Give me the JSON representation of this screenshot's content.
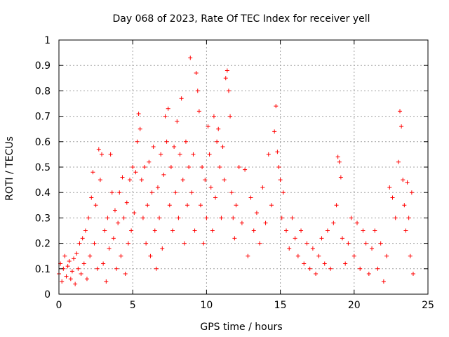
{
  "chart_data": {
    "type": "scatter",
    "title": "Day 068 of 2023, Rate Of TEC Index for receiver yell",
    "xlabel": "GPS time / hours",
    "ylabel": "ROTI / TECUs",
    "xlim": [
      0,
      25
    ],
    "ylim": [
      0,
      1
    ],
    "xticks": [
      0,
      5,
      10,
      15,
      20,
      25
    ],
    "yticks": [
      0,
      0.1,
      0.2,
      0.3,
      0.4,
      0.5,
      0.6,
      0.7,
      0.8,
      0.9,
      1
    ],
    "xtick_labels": [
      "0",
      "5",
      "10",
      "15",
      "20",
      "25"
    ],
    "ytick_labels": [
      "0",
      "0.1",
      "0.2",
      "0.3",
      "0.4",
      "0.5",
      "0.6",
      "0.7",
      "0.8",
      "0.9",
      "1"
    ],
    "grid": true,
    "marker": "plus",
    "color": "#ff0000",
    "series": [
      {
        "values": [
          [
            0.0,
            0.08
          ],
          [
            0.1,
            0.12
          ],
          [
            0.2,
            0.05
          ],
          [
            0.3,
            0.1
          ],
          [
            0.4,
            0.15
          ],
          [
            0.5,
            0.07
          ],
          [
            0.6,
            0.11
          ],
          [
            0.7,
            0.13
          ],
          [
            0.8,
            0.06
          ],
          [
            0.9,
            0.09
          ],
          [
            1.0,
            0.14
          ],
          [
            1.1,
            0.04
          ],
          [
            1.2,
            0.16
          ],
          [
            1.3,
            0.1
          ],
          [
            1.4,
            0.2
          ],
          [
            1.5,
            0.08
          ],
          [
            1.6,
            0.22
          ],
          [
            1.7,
            0.12
          ],
          [
            1.8,
            0.25
          ],
          [
            1.9,
            0.06
          ],
          [
            2.0,
            0.3
          ],
          [
            2.1,
            0.15
          ],
          [
            2.2,
            0.38
          ],
          [
            2.3,
            0.48
          ],
          [
            2.4,
            0.2
          ],
          [
            2.5,
            0.35
          ],
          [
            2.6,
            0.1
          ],
          [
            2.7,
            0.57
          ],
          [
            2.8,
            0.45
          ],
          [
            2.9,
            0.55
          ],
          [
            3.0,
            0.12
          ],
          [
            3.1,
            0.25
          ],
          [
            3.2,
            0.05
          ],
          [
            3.3,
            0.3
          ],
          [
            3.4,
            0.18
          ],
          [
            3.5,
            0.55
          ],
          [
            3.6,
            0.4
          ],
          [
            3.7,
            0.22
          ],
          [
            3.8,
            0.33
          ],
          [
            3.9,
            0.1
          ],
          [
            4.0,
            0.28
          ],
          [
            4.1,
            0.4
          ],
          [
            4.2,
            0.15
          ],
          [
            4.3,
            0.46
          ],
          [
            4.4,
            0.3
          ],
          [
            4.5,
            0.08
          ],
          [
            4.6,
            0.36
          ],
          [
            4.7,
            0.2
          ],
          [
            4.8,
            0.45
          ],
          [
            4.9,
            0.25
          ],
          [
            5.0,
            0.5
          ],
          [
            5.1,
            0.32
          ],
          [
            5.2,
            0.48
          ],
          [
            5.3,
            0.6
          ],
          [
            5.4,
            0.71
          ],
          [
            5.5,
            0.65
          ],
          [
            5.6,
            0.45
          ],
          [
            5.7,
            0.3
          ],
          [
            5.8,
            0.5
          ],
          [
            5.9,
            0.2
          ],
          [
            6.0,
            0.35
          ],
          [
            6.1,
            0.52
          ],
          [
            6.2,
            0.15
          ],
          [
            6.3,
            0.4
          ],
          [
            6.4,
            0.58
          ],
          [
            6.5,
            0.25
          ],
          [
            6.6,
            0.1
          ],
          [
            6.7,
            0.42
          ],
          [
            6.8,
            0.3
          ],
          [
            6.9,
            0.55
          ],
          [
            7.0,
            0.18
          ],
          [
            7.1,
            0.47
          ],
          [
            7.2,
            0.7
          ],
          [
            7.3,
            0.6
          ],
          [
            7.4,
            0.73
          ],
          [
            7.5,
            0.35
          ],
          [
            7.6,
            0.5
          ],
          [
            7.7,
            0.25
          ],
          [
            7.8,
            0.58
          ],
          [
            7.9,
            0.4
          ],
          [
            8.0,
            0.68
          ],
          [
            8.1,
            0.3
          ],
          [
            8.2,
            0.55
          ],
          [
            8.3,
            0.77
          ],
          [
            8.4,
            0.45
          ],
          [
            8.5,
            0.2
          ],
          [
            8.6,
            0.6
          ],
          [
            8.7,
            0.35
          ],
          [
            8.8,
            0.5
          ],
          [
            8.9,
            0.93
          ],
          [
            9.0,
            0.4
          ],
          [
            9.1,
            0.55
          ],
          [
            9.2,
            0.25
          ],
          [
            9.3,
            0.87
          ],
          [
            9.4,
            0.8
          ],
          [
            9.5,
            0.72
          ],
          [
            9.6,
            0.35
          ],
          [
            9.7,
            0.5
          ],
          [
            9.8,
            0.2
          ],
          [
            9.9,
            0.45
          ],
          [
            10.0,
            0.3
          ],
          [
            10.1,
            0.66
          ],
          [
            10.2,
            0.55
          ],
          [
            10.3,
            0.42
          ],
          [
            10.4,
            0.25
          ],
          [
            10.5,
            0.7
          ],
          [
            10.6,
            0.38
          ],
          [
            10.7,
            0.6
          ],
          [
            10.8,
            0.65
          ],
          [
            10.9,
            0.5
          ],
          [
            11.0,
            0.3
          ],
          [
            11.1,
            0.58
          ],
          [
            11.2,
            0.45
          ],
          [
            11.3,
            0.85
          ],
          [
            11.4,
            0.88
          ],
          [
            11.5,
            0.8
          ],
          [
            11.6,
            0.7
          ],
          [
            11.7,
            0.4
          ],
          [
            11.8,
            0.3
          ],
          [
            11.9,
            0.22
          ],
          [
            12.0,
            0.35
          ],
          [
            12.2,
            0.5
          ],
          [
            12.4,
            0.28
          ],
          [
            12.6,
            0.49
          ],
          [
            12.8,
            0.15
          ],
          [
            13.0,
            0.38
          ],
          [
            13.2,
            0.25
          ],
          [
            13.4,
            0.32
          ],
          [
            13.6,
            0.2
          ],
          [
            13.8,
            0.42
          ],
          [
            14.0,
            0.28
          ],
          [
            14.2,
            0.55
          ],
          [
            14.4,
            0.35
          ],
          [
            14.6,
            0.64
          ],
          [
            14.7,
            0.74
          ],
          [
            14.8,
            0.56
          ],
          [
            14.9,
            0.5
          ],
          [
            15.0,
            0.45
          ],
          [
            15.1,
            0.3
          ],
          [
            15.2,
            0.4
          ],
          [
            15.4,
            0.25
          ],
          [
            15.6,
            0.18
          ],
          [
            15.8,
            0.3
          ],
          [
            16.0,
            0.22
          ],
          [
            16.2,
            0.15
          ],
          [
            16.4,
            0.25
          ],
          [
            16.6,
            0.12
          ],
          [
            16.8,
            0.2
          ],
          [
            17.0,
            0.1
          ],
          [
            17.2,
            0.18
          ],
          [
            17.4,
            0.08
          ],
          [
            17.6,
            0.15
          ],
          [
            17.8,
            0.22
          ],
          [
            18.0,
            0.12
          ],
          [
            18.2,
            0.25
          ],
          [
            18.4,
            0.1
          ],
          [
            18.6,
            0.28
          ],
          [
            18.8,
            0.35
          ],
          [
            18.9,
            0.54
          ],
          [
            19.0,
            0.52
          ],
          [
            19.1,
            0.46
          ],
          [
            19.2,
            0.22
          ],
          [
            19.4,
            0.12
          ],
          [
            19.6,
            0.2
          ],
          [
            19.8,
            0.3
          ],
          [
            20.0,
            0.15
          ],
          [
            20.2,
            0.28
          ],
          [
            20.4,
            0.1
          ],
          [
            20.6,
            0.25
          ],
          [
            20.8,
            0.2
          ],
          [
            21.0,
            0.08
          ],
          [
            21.2,
            0.18
          ],
          [
            21.4,
            0.25
          ],
          [
            21.6,
            0.1
          ],
          [
            21.8,
            0.2
          ],
          [
            22.0,
            0.05
          ],
          [
            22.2,
            0.15
          ],
          [
            22.4,
            0.42
          ],
          [
            22.6,
            0.38
          ],
          [
            22.8,
            0.3
          ],
          [
            23.0,
            0.52
          ],
          [
            23.1,
            0.72
          ],
          [
            23.2,
            0.66
          ],
          [
            23.3,
            0.45
          ],
          [
            23.4,
            0.35
          ],
          [
            23.5,
            0.25
          ],
          [
            23.6,
            0.44
          ],
          [
            23.7,
            0.3
          ],
          [
            23.8,
            0.15
          ],
          [
            23.9,
            0.4
          ],
          [
            24.0,
            0.08
          ]
        ]
      }
    ]
  }
}
